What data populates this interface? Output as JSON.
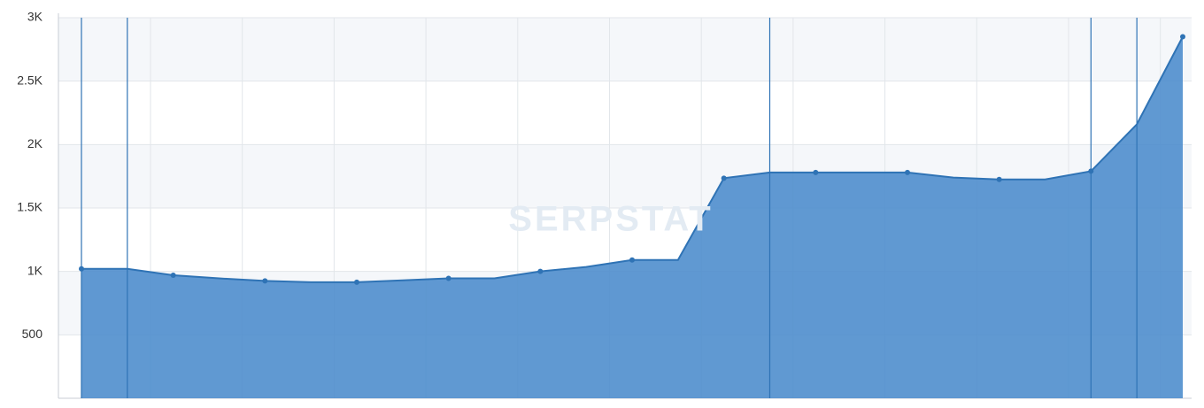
{
  "chart_data": {
    "type": "area",
    "watermark": "SERPSTAT",
    "categories": [
      null,
      null,
      null,
      null,
      null,
      null,
      null,
      null,
      null,
      null,
      null,
      null,
      null,
      null,
      null,
      null,
      null,
      null,
      null,
      null,
      null,
      null,
      null,
      null,
      null
    ],
    "series": [
      {
        "color": "#4a8bcc",
        "values": [
          1020,
          1020,
          970,
          945,
          925,
          915,
          915,
          930,
          945,
          945,
          1000,
          1035,
          1090,
          1090,
          1735,
          1780,
          1780,
          1780,
          1780,
          1740,
          1725,
          1725,
          1790,
          2160,
          2850
        ]
      }
    ],
    "ylim": [
      0,
      3000
    ],
    "yticks": [
      500,
      {
        "value": 1000,
        "label": "1K"
      },
      {
        "value": 1500,
        "label": "1.5K"
      },
      {
        "value": 2000,
        "label": "2K"
      },
      {
        "value": 2500,
        "label": "2.5K"
      },
      {
        "value": 3000,
        "label": "3K"
      }
    ],
    "grid": true
  }
}
